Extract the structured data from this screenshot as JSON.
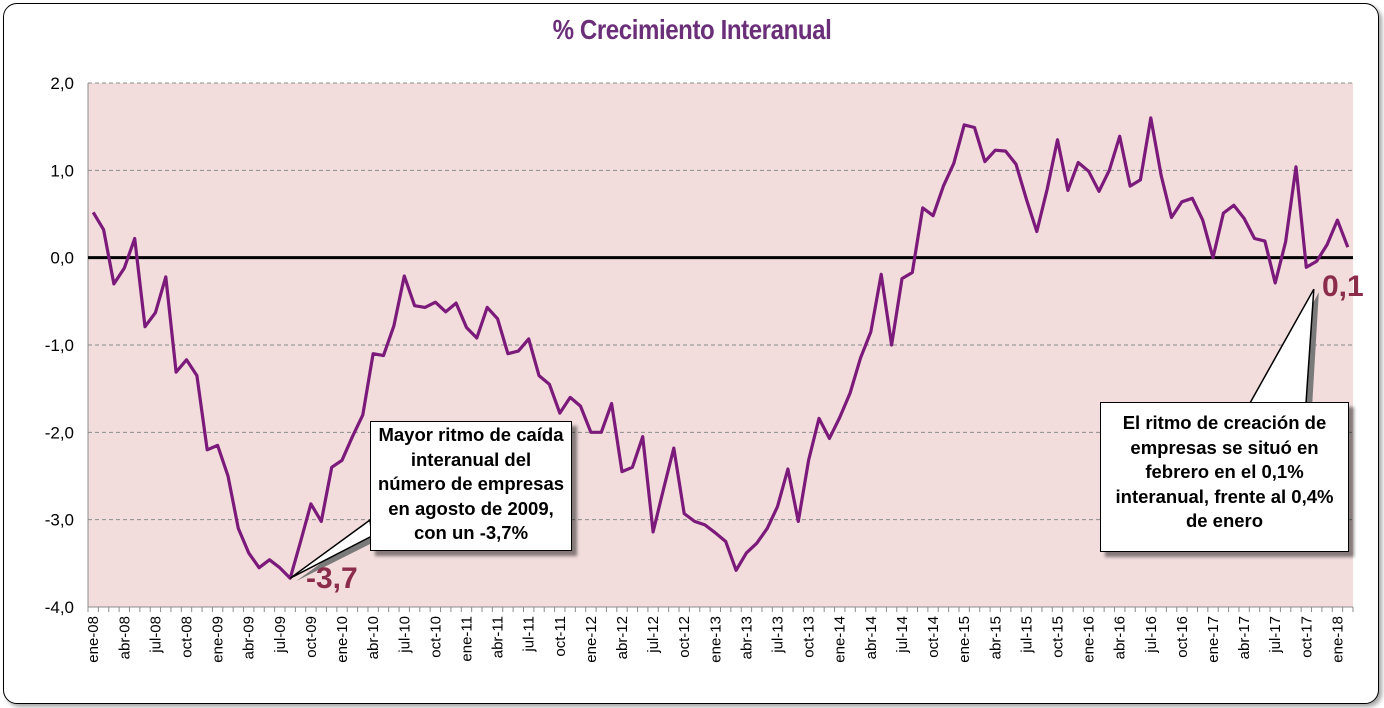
{
  "chart_data": {
    "type": "line",
    "title": "% Crecimiento Interanual",
    "ylim": [
      -4.0,
      2.0
    ],
    "yticks": [
      "2,0",
      "1,0",
      "0,0",
      "-1,0",
      "-2,0",
      "-3,0",
      "-4,0"
    ],
    "ytick_values": [
      2,
      1,
      0,
      -1,
      -2,
      -3,
      -4
    ],
    "grid": "horizontal dashed",
    "x_tick_labels": [
      "ene-08",
      "abr-08",
      "jul-08",
      "oct-08",
      "ene-09",
      "abr-09",
      "jul-09",
      "oct-09",
      "ene-10",
      "abr-10",
      "jul-10",
      "oct-10",
      "ene-11",
      "abr-11",
      "jul-11",
      "oct-11",
      "ene-12",
      "abr-12",
      "jul-12",
      "oct-12",
      "ene-13",
      "abr-13",
      "jul-13",
      "oct-13",
      "ene-14",
      "abr-14",
      "jul-14",
      "oct-14",
      "ene-15",
      "abr-15",
      "jul-15",
      "oct-15",
      "ene-16",
      "abr-16",
      "jul-16",
      "oct-16",
      "ene-17",
      "abr-17",
      "jul-17",
      "oct-17",
      "ene-18"
    ],
    "start": "ene-08",
    "end": "feb-18",
    "series": [
      {
        "color": "#7b1a7a",
        "values": [
          0.52,
          0.32,
          -0.3,
          -0.12,
          0.22,
          -0.79,
          -0.63,
          -0.22,
          -1.31,
          -1.17,
          -1.35,
          -2.2,
          -2.15,
          -2.5,
          -3.1,
          -3.38,
          -3.55,
          -3.46,
          -3.55,
          -3.67,
          -3.25,
          -2.82,
          -3.02,
          -2.4,
          -2.32,
          -2.05,
          -1.8,
          -1.1,
          -1.12,
          -0.78,
          -0.21,
          -0.55,
          -0.57,
          -0.51,
          -0.62,
          -0.52,
          -0.8,
          -0.92,
          -0.57,
          -0.7,
          -1.1,
          -1.07,
          -0.93,
          -1.35,
          -1.45,
          -1.78,
          -1.6,
          -1.7,
          -2.0,
          -2.0,
          -1.67,
          -2.45,
          -2.4,
          -2.05,
          -3.14,
          -2.65,
          -2.18,
          -2.93,
          -3.02,
          -3.06,
          -3.15,
          -3.25,
          -3.58,
          -3.38,
          -3.27,
          -3.1,
          -2.85,
          -2.42,
          -3.02,
          -2.32,
          -1.84,
          -2.07,
          -1.83,
          -1.55,
          -1.15,
          -0.85,
          -0.19,
          -1.0,
          -0.24,
          -0.17,
          0.57,
          0.48,
          0.82,
          1.08,
          1.52,
          1.49,
          1.1,
          1.23,
          1.22,
          1.07,
          0.67,
          0.3,
          0.78,
          1.35,
          0.77,
          1.09,
          0.99,
          0.76,
          1.0,
          1.39,
          0.82,
          0.89,
          1.6,
          0.94,
          0.46,
          0.64,
          0.68,
          0.43,
          0.0,
          0.51,
          0.6,
          0.45,
          0.22,
          0.19,
          -0.29,
          0.18,
          1.04,
          -0.11,
          -0.04,
          0.15,
          0.43,
          0.12
        ]
      }
    ],
    "zero_line": 0.0,
    "annotations": [
      {
        "id": "min",
        "label": "-3,7",
        "at": "ago-09",
        "value": -3.7
      },
      {
        "id": "last",
        "label": "0,1",
        "at": "feb-18",
        "value": 0.1
      }
    ]
  },
  "callouts": {
    "min": "Mayor ritmo de caída interanual del número de empresas en agosto de 2009, con un -3,7%",
    "last": "El ritmo de creación de empresas se situó en febrero en el 0,1% interanual, frente al 0,4% de enero"
  },
  "colors": {
    "plot_background": "#f2dcdc",
    "line": "#7b1a7a",
    "title": "#6b2f7a",
    "annotation_label": "#8b2c4a"
  }
}
